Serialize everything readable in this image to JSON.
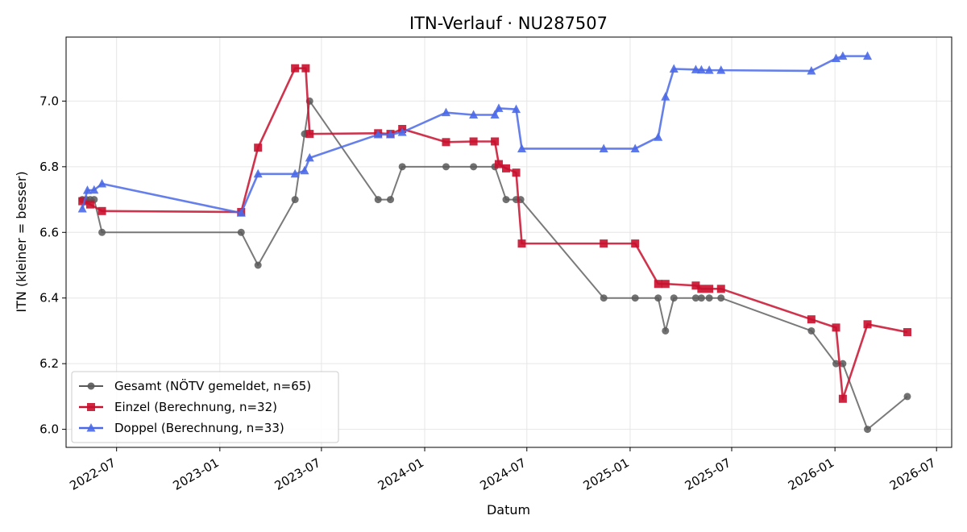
{
  "chart_data": {
    "type": "line",
    "title": "ITN-Verlauf · NU287507",
    "xlabel": "Datum",
    "ylabel": "ITN  (kleiner = besser)",
    "ylim": [
      5.945,
      7.195
    ],
    "xlim": [
      "2022-04-02",
      "2026-07-28"
    ],
    "grid": true,
    "legend_position": "lower-left",
    "x_ticks": [
      "2022-07",
      "2023-01",
      "2023-07",
      "2024-01",
      "2024-07",
      "2025-01",
      "2025-07",
      "2026-01",
      "2026-07"
    ],
    "y_ticks": [
      "6.0",
      "6.2",
      "6.4",
      "6.6",
      "6.8",
      "7.0"
    ],
    "series": [
      {
        "name": "Gesamt (NÖTV gemeldet, n=65)",
        "color": "#595959",
        "marker": "circle",
        "points": [
          [
            "2022-05-01",
            6.7
          ],
          [
            "2022-05-08",
            6.7
          ],
          [
            "2022-05-15",
            6.7
          ],
          [
            "2022-05-22",
            6.7
          ],
          [
            "2022-06-05",
            6.6
          ],
          [
            "2023-02-08",
            6.6
          ],
          [
            "2023-03-10",
            6.5
          ],
          [
            "2023-05-15",
            6.7
          ],
          [
            "2023-06-01",
            6.9
          ],
          [
            "2023-06-10",
            7.0
          ],
          [
            "2023-10-10",
            6.7
          ],
          [
            "2023-11-01",
            6.7
          ],
          [
            "2023-11-22",
            6.8
          ],
          [
            "2024-02-08",
            6.8
          ],
          [
            "2024-03-28",
            6.8
          ],
          [
            "2024-05-05",
            6.8
          ],
          [
            "2024-05-25",
            6.7
          ],
          [
            "2024-06-12",
            6.7
          ],
          [
            "2024-06-20",
            6.7
          ],
          [
            "2024-11-15",
            6.4
          ],
          [
            "2025-01-10",
            6.4
          ],
          [
            "2025-02-20",
            6.4
          ],
          [
            "2025-03-05",
            6.3
          ],
          [
            "2025-03-20",
            6.4
          ],
          [
            "2025-04-28",
            6.4
          ],
          [
            "2025-05-08",
            6.4
          ],
          [
            "2025-05-22",
            6.4
          ],
          [
            "2025-06-12",
            6.4
          ],
          [
            "2025-11-20",
            6.3
          ],
          [
            "2026-01-03",
            6.2
          ],
          [
            "2026-01-15",
            6.2
          ],
          [
            "2026-02-28",
            6.0
          ],
          [
            "2026-05-10",
            6.1
          ]
        ]
      },
      {
        "name": "Einzel (Berechnung, n=32)",
        "color": "#c8102e",
        "marker": "square",
        "points": [
          [
            "2022-05-01",
            6.695
          ],
          [
            "2022-05-15",
            6.685
          ],
          [
            "2022-06-05",
            6.665
          ],
          [
            "2023-02-08",
            6.662
          ],
          [
            "2023-03-10",
            6.858
          ],
          [
            "2023-05-15",
            7.1
          ],
          [
            "2023-06-03",
            7.1
          ],
          [
            "2023-06-10",
            6.9
          ],
          [
            "2023-10-10",
            6.902
          ],
          [
            "2023-11-01",
            6.9
          ],
          [
            "2023-11-22",
            6.915
          ],
          [
            "2024-02-08",
            6.875
          ],
          [
            "2024-03-28",
            6.877
          ],
          [
            "2024-05-05",
            6.877
          ],
          [
            "2024-05-12",
            6.808
          ],
          [
            "2024-05-25",
            6.795
          ],
          [
            "2024-06-12",
            6.782
          ],
          [
            "2024-06-22",
            6.566
          ],
          [
            "2024-11-15",
            6.566
          ],
          [
            "2025-01-10",
            6.566
          ],
          [
            "2025-02-20",
            6.443
          ],
          [
            "2025-03-05",
            6.443
          ],
          [
            "2025-04-28",
            6.438
          ],
          [
            "2025-05-08",
            6.428
          ],
          [
            "2025-05-22",
            6.428
          ],
          [
            "2025-06-12",
            6.428
          ],
          [
            "2025-11-20",
            6.335
          ],
          [
            "2026-01-03",
            6.31
          ],
          [
            "2026-01-15",
            6.093
          ],
          [
            "2026-02-28",
            6.32
          ],
          [
            "2026-05-10",
            6.296
          ]
        ]
      },
      {
        "name": "Doppel (Berechnung, n=33)",
        "color": "#4a69e8",
        "marker": "triangle",
        "points": [
          [
            "2022-05-01",
            6.672
          ],
          [
            "2022-05-10",
            6.728
          ],
          [
            "2022-05-22",
            6.729
          ],
          [
            "2022-06-05",
            6.748
          ],
          [
            "2023-02-08",
            6.659
          ],
          [
            "2023-03-10",
            6.778
          ],
          [
            "2023-05-15",
            6.778
          ],
          [
            "2023-06-01",
            6.788
          ],
          [
            "2023-06-10",
            6.827
          ],
          [
            "2023-10-10",
            6.898
          ],
          [
            "2023-11-01",
            6.898
          ],
          [
            "2023-11-22",
            6.905
          ],
          [
            "2024-02-08",
            6.965
          ],
          [
            "2024-03-28",
            6.958
          ],
          [
            "2024-05-05",
            6.958
          ],
          [
            "2024-05-12",
            6.978
          ],
          [
            "2024-06-12",
            6.975
          ],
          [
            "2024-06-22",
            6.855
          ],
          [
            "2024-11-15",
            6.855
          ],
          [
            "2025-01-10",
            6.855
          ],
          [
            "2025-02-20",
            6.89
          ],
          [
            "2025-03-05",
            7.013
          ],
          [
            "2025-03-20",
            7.098
          ],
          [
            "2025-04-28",
            7.096
          ],
          [
            "2025-05-08",
            7.095
          ],
          [
            "2025-05-22",
            7.094
          ],
          [
            "2025-06-12",
            7.094
          ],
          [
            "2025-11-20",
            7.092
          ],
          [
            "2026-01-03",
            7.13
          ],
          [
            "2026-01-15",
            7.137
          ],
          [
            "2026-02-28",
            7.137
          ]
        ]
      }
    ]
  }
}
